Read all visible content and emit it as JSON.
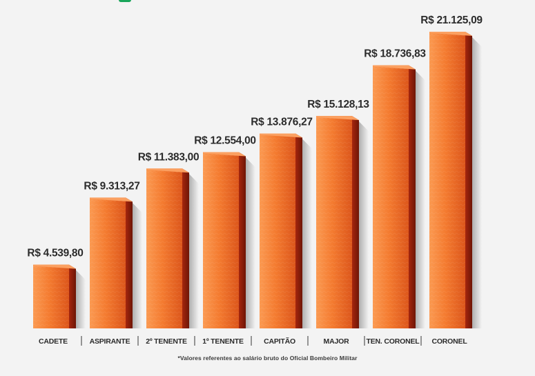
{
  "chart_data": {
    "type": "bar",
    "title": "",
    "xlabel": "",
    "ylabel": "",
    "ylim": [
      0,
      21125.09
    ],
    "categories": [
      "CADETE",
      "ASPIRANTE",
      "2º TENENTE",
      "1º TENENTE",
      "CAPITÃO",
      "MAJOR",
      "TEN. CORONEL",
      "CORONEL"
    ],
    "values": [
      4539.8,
      9313.27,
      11383.0,
      12554.0,
      13876.27,
      15128.13,
      18736.83,
      21125.09
    ],
    "value_labels": [
      "R$ 4.539,80",
      "R$ 9.313,27",
      "R$ 11.383,00",
      "R$ 12.554,00",
      "R$ 13.876,27",
      "R$ 15.128,13",
      "R$ 18.736,83",
      "R$ 21.125,09"
    ],
    "grid": false,
    "legend": "none"
  },
  "footnote": "*Valores referentes ao salário bruto do Oficial Bombeiro Militar",
  "colors": {
    "bar_front_light": "#f7873a",
    "bar_front_dark": "#d9531a",
    "bar_side": "#8f1f0c",
    "bar_top": "#fba061",
    "label_text": "#2b2b2b",
    "separator": "#555555",
    "accent": "#1aa55a"
  }
}
